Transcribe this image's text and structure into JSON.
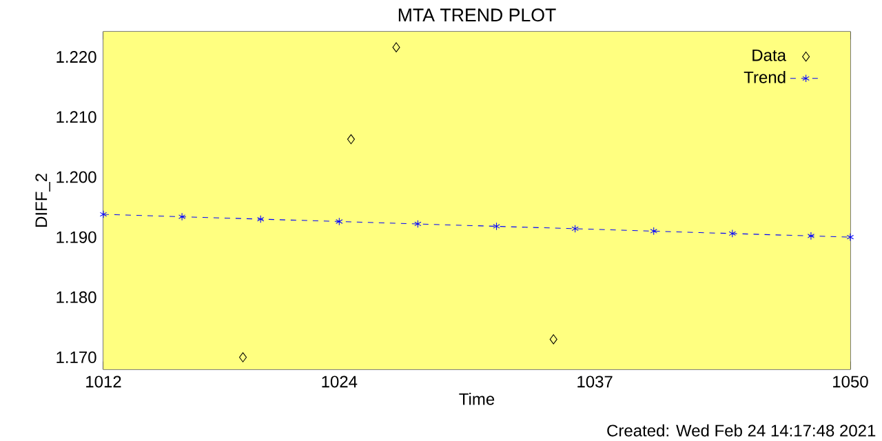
{
  "chart_data": {
    "type": "scatter",
    "title": "MTA TREND PLOT",
    "xlabel": "Time",
    "ylabel": "DIFF_2",
    "xlim": [
      1012,
      1050
    ],
    "xticks": [
      1012,
      1024,
      1037,
      1050
    ],
    "ylim": [
      1.168,
      1.2242
    ],
    "yticks": [
      {
        "value": 1.17,
        "label": "1.170"
      },
      {
        "value": 1.18,
        "label": "1.180"
      },
      {
        "value": 1.19,
        "label": "1.190"
      },
      {
        "value": 1.2,
        "label": "1.200"
      },
      {
        "value": 1.21,
        "label": "1.210"
      },
      {
        "value": 1.22,
        "label": "1.220"
      }
    ],
    "legend": "top right",
    "grid": false,
    "annotations": [
      "Created: Wed Feb 24 14:17:48 2021"
    ],
    "series": [
      {
        "name": "Data",
        "marker": "diamond",
        "color": "#000000",
        "x": [
          1019.1,
          1024.6,
          1026.9,
          1034.9
        ],
        "values": [
          1.17,
          1.2063,
          1.2216,
          1.173
        ]
      },
      {
        "name": "Trend",
        "type": "line",
        "marker": "cross",
        "line_style": "dashed",
        "color": "#0000ff",
        "x": [
          1012,
          1016,
          1020,
          1024,
          1028,
          1032,
          1036,
          1040,
          1044,
          1048,
          1050
        ],
        "values": [
          1.1938,
          1.1934,
          1.193,
          1.1926,
          1.1922,
          1.1918,
          1.1914,
          1.191,
          1.1906,
          1.1902,
          1.19
        ]
      }
    ]
  }
}
